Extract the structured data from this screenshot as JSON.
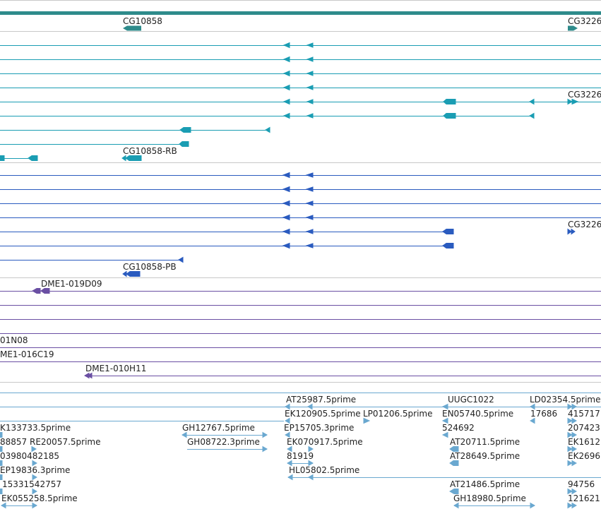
{
  "colors": {
    "gene": "#2e8b8b",
    "mrna_teal": "#1a9db3",
    "mrna_blue": "#2a5bbf",
    "bac": "#6a4fa3",
    "est": "#6aa8d0",
    "separator": "#c8c8c8"
  },
  "gene_labels": {
    "cg10858": "CG10858",
    "cg3226_a": "CG3226",
    "cg3226_b": "CG3226",
    "cg10858_rb": "CG10858-RB",
    "cg3226_c": "CG3226",
    "cg10858_pb": "CG10858-PB"
  },
  "bac_labels": {
    "dme1_019d09": "DME1-019D09",
    "dme1_01n08": "01N08",
    "dme1_016c19": "ME1-016C19",
    "dme1_010h11": "DME1-010H11"
  },
  "est_labels": {
    "at25987": "AT25987.5prime",
    "uugc1022": "UUGC1022",
    "ld02354": "LD02354.5prime",
    "ek120905": "EK120905.5prime",
    "lp01206": "LP01206.5prime",
    "en05740": "EN05740.5prime",
    "n17686": "17686",
    "n415717": "415717",
    "ek133733": "K133733.5prime",
    "gh12767": "GH12767.5prime",
    "ep15705": "EP15705.3prime",
    "n524692": "524692",
    "n207423": "207423",
    "re20057": "88857 RE20057.5prime",
    "gh08722": "GH08722.3prime",
    "ek070917": "EK070917.5prime",
    "at20711": "AT20711.5prime",
    "ek1612": "EK1612",
    "n03980482185": "03980482185",
    "n81919": "81919",
    "at28649": "AT28649.5prime",
    "ek2696": "EK2696",
    "ep19836": "EP19836.3prime",
    "hl05802": "HL05802.5prime",
    "n15331542757": "15331542757",
    "at21486": "AT21486.5prime",
    "n94756": "94756",
    "ek055258": "EK055258.5prime",
    "gh18980": "GH18980.5prime",
    "n121621": "121621"
  }
}
